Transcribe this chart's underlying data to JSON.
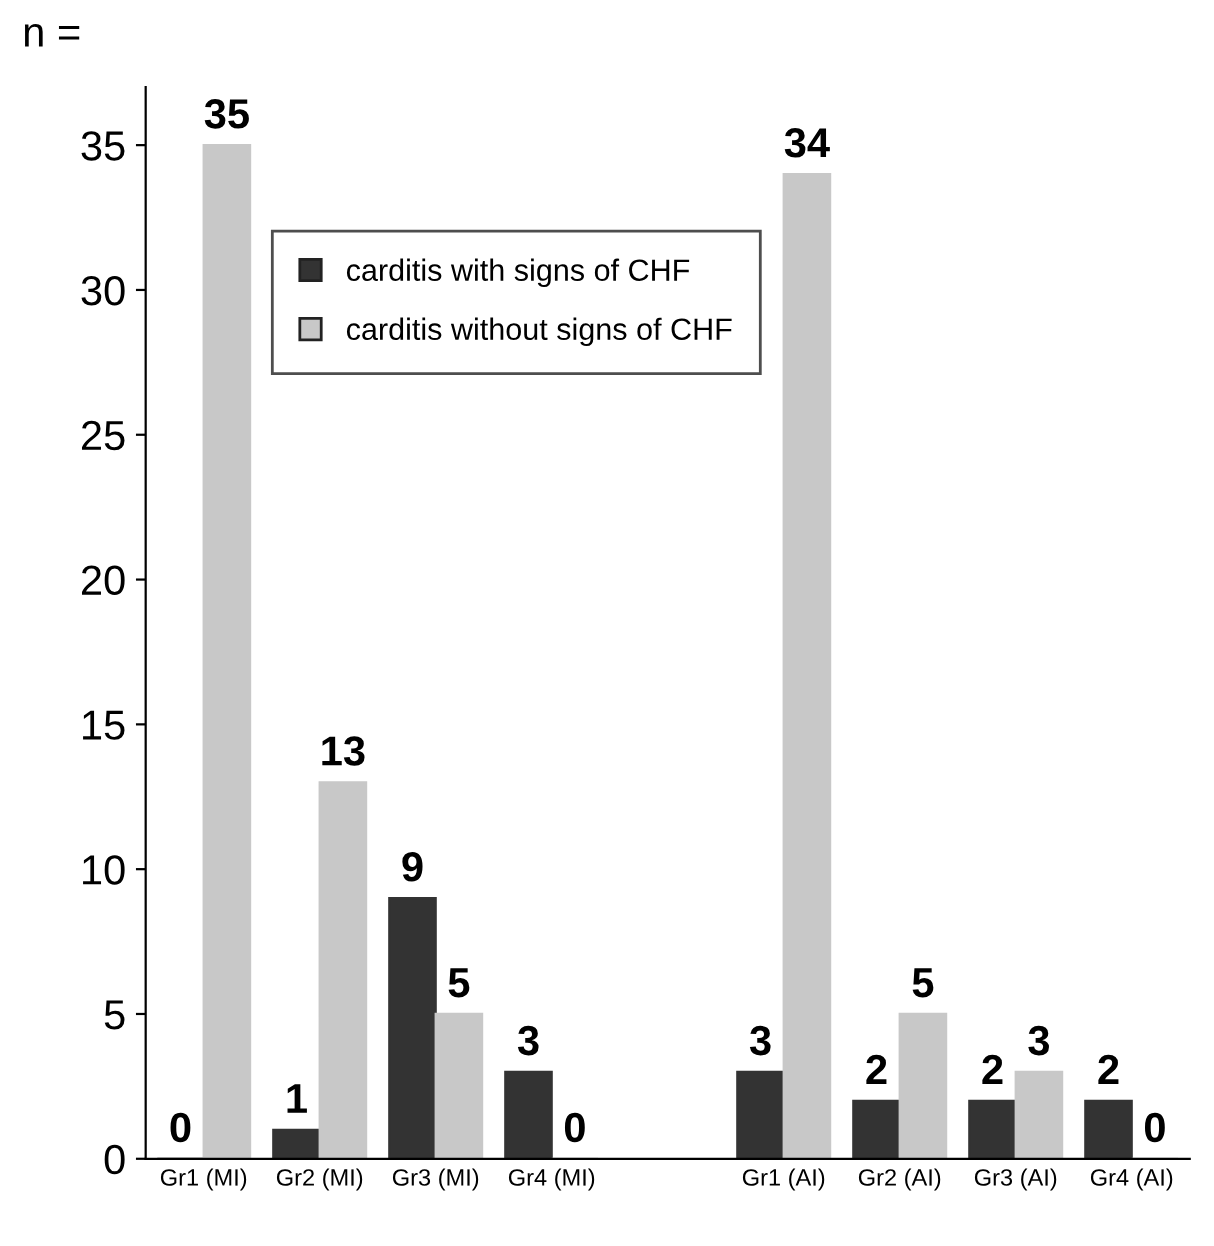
{
  "chart_data": {
    "type": "bar",
    "ylabel": "n =",
    "categories": [
      "Gr1 (MI)",
      "Gr2 (MI)",
      "Gr3 (MI)",
      "Gr4 (MI)",
      null,
      "Gr1 (AI)",
      "Gr2 (AI)",
      "Gr3 (AI)",
      "Gr4 (AI)"
    ],
    "series": [
      {
        "name": "carditis with signs of CHF",
        "color": "#333333",
        "values": [
          0,
          1,
          9,
          3,
          null,
          3,
          2,
          2,
          2
        ]
      },
      {
        "name": "carditis without signs of CHF",
        "color": "#c8c8c8",
        "values": [
          35,
          13,
          5,
          0,
          null,
          34,
          5,
          3,
          0
        ]
      }
    ],
    "ylim": [
      0,
      37
    ],
    "yticks": [
      0,
      5,
      10,
      15,
      20,
      25,
      30,
      35
    ],
    "data_labels": true,
    "legend": "top",
    "grid": false
  }
}
